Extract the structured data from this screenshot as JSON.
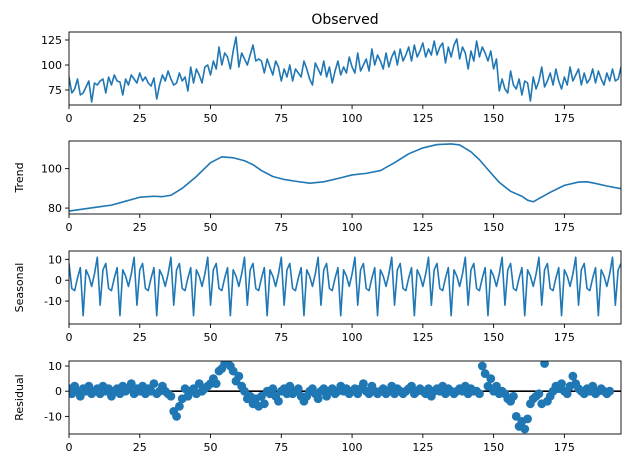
{
  "figure_title": "Observed",
  "chart_data": [
    {
      "type": "line",
      "panel": "observed",
      "title": "Observed",
      "ylabel": "",
      "xlim": [
        0,
        195
      ],
      "ylim": [
        60,
        133
      ],
      "xticks": [
        0,
        25,
        50,
        75,
        100,
        125,
        150,
        175
      ],
      "yticks": [
        75,
        100,
        125
      ],
      "color": "#1f77b4",
      "x_start": 0,
      "values": [
        88,
        72,
        76,
        86,
        70,
        72,
        78,
        84,
        63,
        82,
        80,
        84,
        86,
        72,
        88,
        80,
        90,
        84,
        83,
        70,
        86,
        80,
        90,
        86,
        82,
        92,
        84,
        88,
        82,
        79,
        87,
        66,
        80,
        90,
        84,
        94,
        86,
        80,
        82,
        92,
        84,
        88,
        74,
        98,
        82,
        96,
        90,
        82,
        98,
        100,
        90,
        104,
        96,
        118,
        100,
        112,
        108,
        96,
        114,
        128,
        98,
        112,
        106,
        100,
        110,
        120,
        104,
        106,
        104,
        92,
        106,
        98,
        90,
        104,
        98,
        84,
        96,
        88,
        100,
        84,
        96,
        92,
        88,
        104,
        96,
        86,
        80,
        102,
        96,
        90,
        104,
        88,
        98,
        82,
        94,
        104,
        90,
        98,
        92,
        108,
        98,
        92,
        112,
        94,
        100,
        106,
        94,
        116,
        100,
        110,
        104,
        96,
        112,
        98,
        108,
        114,
        100,
        116,
        104,
        110,
        118,
        104,
        120,
        108,
        114,
        122,
        108,
        116,
        110,
        124,
        110,
        118,
        122,
        102,
        118,
        108,
        120,
        126,
        106,
        118,
        112,
        96,
        114,
        104,
        124,
        108,
        118,
        112,
        104,
        114,
        96,
        106,
        74,
        86,
        76,
        72,
        94,
        80,
        76,
        86,
        70,
        84,
        82,
        64,
        88,
        76,
        84,
        98,
        78,
        84,
        92,
        80,
        96,
        84,
        76,
        88,
        80,
        98,
        84,
        90,
        96,
        80,
        92,
        82,
        86,
        96,
        82,
        94,
        86,
        80,
        92,
        84,
        96,
        84,
        86,
        98
      ]
    },
    {
      "type": "line",
      "panel": "trend",
      "title": "",
      "ylabel": "Trend",
      "xlim": [
        0,
        195
      ],
      "ylim": [
        77,
        114
      ],
      "xticks": [
        0,
        25,
        50,
        75,
        100,
        125,
        150,
        175
      ],
      "yticks": [
        80,
        100
      ],
      "color": "#1f77b4",
      "x": [
        0,
        5,
        10,
        15,
        20,
        25,
        30,
        33,
        36,
        40,
        45,
        50,
        54,
        58,
        62,
        65,
        68,
        72,
        76,
        80,
        85,
        90,
        95,
        100,
        105,
        110,
        115,
        120,
        125,
        130,
        135,
        138,
        142,
        145,
        148,
        152,
        156,
        160,
        162,
        164,
        166,
        170,
        175,
        180,
        183,
        186,
        190,
        195
      ],
      "y": [
        78.5,
        79.5,
        80.5,
        81.5,
        83.5,
        85.5,
        86,
        85.8,
        86.5,
        90,
        96,
        103,
        106,
        105.5,
        104,
        102,
        99,
        96,
        94.5,
        93.6,
        92.6,
        93.3,
        95,
        96.8,
        97.6,
        99,
        103,
        107.5,
        110.5,
        112.2,
        112.5,
        112,
        108.5,
        104.5,
        99.5,
        93,
        88.5,
        86,
        84,
        83.2,
        84.8,
        88,
        91.5,
        93.2,
        93.3,
        92.5,
        91.2,
        89.8
      ]
    },
    {
      "type": "line",
      "panel": "seasonal",
      "title": "",
      "ylabel": "Seasonal",
      "xlim": [
        0,
        195
      ],
      "ylim": [
        -21,
        14
      ],
      "xticks": [
        0,
        25,
        50,
        75,
        100,
        125,
        150,
        175
      ],
      "yticks": [
        -10,
        0,
        10
      ],
      "color": "#1f77b4",
      "period": 13,
      "x_start": 0,
      "pattern": [
        8,
        -4,
        -5,
        1,
        6,
        -17,
        5,
        2,
        -3,
        3,
        11,
        -12,
        5
      ]
    },
    {
      "type": "scatter",
      "panel": "residual",
      "title": "",
      "ylabel": "Residual",
      "xlim": [
        0,
        195
      ],
      "ylim": [
        -17,
        12
      ],
      "xticks": [
        0,
        25,
        50,
        75,
        100,
        125,
        150,
        175
      ],
      "yticks": [
        -10,
        0,
        10
      ],
      "color": "#1f77b4",
      "baseline": 0,
      "baseline_color": "#000000",
      "x_start": 0,
      "values": [
        1,
        -1,
        2,
        0,
        -2,
        1,
        0,
        2,
        -1,
        0,
        1,
        -1,
        2,
        0,
        1,
        -2,
        0,
        1,
        -1,
        2,
        0,
        1,
        3,
        -1,
        1,
        0,
        2,
        -1,
        1,
        0,
        3,
        -1,
        0,
        2,
        0,
        -1,
        -2,
        -8,
        -10,
        -6,
        -3,
        1,
        -2,
        0,
        1,
        -1,
        3,
        0,
        1,
        2,
        3,
        5,
        3,
        8,
        9,
        11,
        12,
        10,
        8,
        4,
        6,
        2,
        0,
        -3,
        -2,
        -5,
        -3,
        -6,
        -2,
        -5,
        0,
        -1,
        1,
        -2,
        -4,
        0,
        1,
        -1,
        2,
        -1,
        0,
        1,
        -2,
        -4,
        -2,
        0,
        1,
        -1,
        -3,
        0,
        1,
        -2,
        0,
        1,
        -1,
        0,
        2,
        0,
        1,
        -1,
        0,
        1,
        -1,
        1,
        3,
        0,
        -1,
        2,
        0,
        -1,
        0,
        1,
        -1,
        0,
        2,
        -1,
        1,
        0,
        -1,
        0,
        1,
        2,
        -1,
        0,
        1,
        0,
        -1,
        1,
        -2,
        0,
        1,
        0,
        2,
        -1,
        1,
        0,
        -1,
        0,
        1,
        0,
        2,
        -1,
        1,
        0,
        0,
        -1,
        10,
        7,
        2,
        5,
        0,
        2,
        -1,
        0,
        -1,
        -3,
        -4,
        -2,
        -10,
        -14,
        -12,
        -15,
        -11,
        -5,
        -3,
        -2,
        -1,
        -5,
        11,
        -4,
        -2,
        0,
        2,
        1,
        3,
        0,
        -1,
        2,
        6,
        3,
        1,
        0,
        -1,
        1,
        0,
        2,
        -1,
        0,
        1,
        0,
        -1,
        0
      ]
    }
  ]
}
